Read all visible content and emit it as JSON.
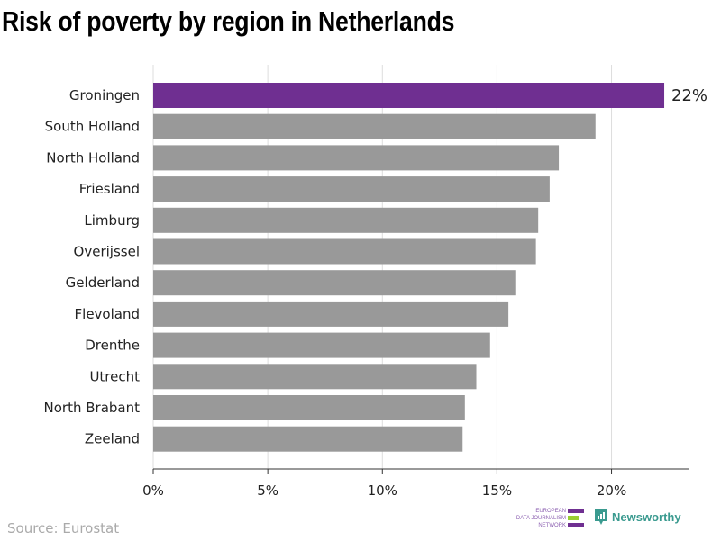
{
  "chart_data": {
    "type": "bar",
    "orientation": "horizontal",
    "title": "Risk of poverty by region in Netherlands",
    "categories": [
      "Groningen",
      "South Holland",
      "North Holland",
      "Friesland",
      "Limburg",
      "Overijssel",
      "Gelderland",
      "Flevoland",
      "Drenthe",
      "Utrecht",
      "North Brabant",
      "Zeeland"
    ],
    "values": [
      22.3,
      19.3,
      17.7,
      17.3,
      16.8,
      16.7,
      15.8,
      15.5,
      14.7,
      14.1,
      13.6,
      13.5
    ],
    "highlight_label": "22%",
    "xticks": [
      "0%",
      "5%",
      "10%",
      "15%",
      "20%"
    ],
    "xtick_values": [
      0,
      5,
      10,
      15,
      20
    ],
    "xlim": [
      0,
      23.4
    ],
    "grid": true,
    "colors": {
      "highlight": "#6f2f91",
      "default": "#999999",
      "grid": "#dddddd"
    }
  },
  "source": "Source: Eurostat",
  "logos": {
    "edjn": [
      "EUROPEAN",
      "DATA JOURNALISM",
      "NETWORK"
    ],
    "newsworthy": "Newsworthy"
  }
}
